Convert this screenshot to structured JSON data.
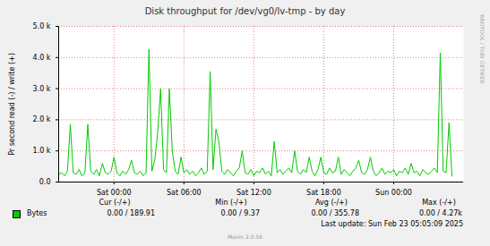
{
  "chart_data": {
    "type": "line",
    "title": "Disk throughput for /dev/vg0/lv-tmp - by day",
    "y_label": "Pr second read (-) / write (+)",
    "side_text": "RRDTOOL / TOBI OETIKER",
    "footer": "Last update: Sun Feb 23 05:05:09 2025",
    "credit": "Munin 2.0.56",
    "grid": true,
    "xlim": [
      -4.75,
      30
    ],
    "xticks": [
      {
        "value": 0,
        "label": "Sat 00:00"
      },
      {
        "value": 6,
        "label": "Sat 06:00"
      },
      {
        "value": 12,
        "label": "Sat 12:00"
      },
      {
        "value": 18,
        "label": "Sat 18:00"
      },
      {
        "value": 24,
        "label": "Sun 00:00"
      }
    ],
    "ylim": [
      0,
      5000
    ],
    "yticks": [
      {
        "value": 0,
        "label": "0.0"
      },
      {
        "value": 1000,
        "label": "1.0 k"
      },
      {
        "value": 2000,
        "label": "2.0 k"
      },
      {
        "value": 3000,
        "label": "3.0 k"
      },
      {
        "value": 4000,
        "label": "4.0 k"
      },
      {
        "value": 5000,
        "label": "5.0 k"
      }
    ],
    "x": [
      -4.75,
      -4.5,
      -4.25,
      -4,
      -3.75,
      -3.5,
      -3.25,
      -3,
      -2.75,
      -2.5,
      -2.25,
      -2,
      -1.75,
      -1.5,
      -1.25,
      -1,
      -0.75,
      -0.5,
      -0.25,
      0,
      0.25,
      0.5,
      0.75,
      1,
      1.25,
      1.5,
      1.75,
      2,
      2.25,
      2.5,
      2.75,
      3,
      3.25,
      3.5,
      3.75,
      4,
      4.25,
      4.5,
      4.75,
      5,
      5.25,
      5.5,
      5.75,
      6,
      6.25,
      6.5,
      6.75,
      7,
      7.25,
      7.5,
      7.75,
      8,
      8.25,
      8.5,
      8.75,
      9,
      9.25,
      9.5,
      9.75,
      10,
      10.25,
      10.5,
      10.75,
      11,
      11.25,
      11.5,
      11.75,
      12,
      12.25,
      12.5,
      12.75,
      13,
      13.25,
      13.5,
      13.75,
      14,
      14.25,
      14.5,
      14.75,
      15,
      15.25,
      15.5,
      15.75,
      16,
      16.25,
      16.5,
      16.75,
      17,
      17.25,
      17.5,
      17.75,
      18,
      18.25,
      18.5,
      18.75,
      19,
      19.25,
      19.5,
      19.75,
      20,
      20.25,
      20.5,
      20.75,
      21,
      21.25,
      21.5,
      21.75,
      22,
      22.25,
      22.5,
      22.75,
      23,
      23.25,
      23.5,
      23.75,
      24,
      24.25,
      24.5,
      24.75,
      25,
      25.25,
      25.5,
      25.75,
      26,
      26.25,
      26.5,
      26.75,
      27,
      27.25,
      27.5,
      27.75,
      28,
      28.25,
      28.5,
      28.75,
      29
    ],
    "series": [
      {
        "name": "Bytes",
        "color": "#00cc00",
        "values": [
          250,
          300,
          200,
          350,
          1850,
          300,
          250,
          400,
          200,
          300,
          1850,
          350,
          250,
          400,
          200,
          600,
          300,
          250,
          350,
          800,
          300,
          200,
          350,
          250,
          400,
          700,
          300,
          250,
          350,
          200,
          300,
          4270,
          350,
          700,
          1600,
          3000,
          400,
          300,
          3000,
          1000,
          350,
          250,
          800,
          300,
          400,
          250,
          350,
          200,
          300,
          450,
          250,
          350,
          3550,
          400,
          1700,
          1300,
          350,
          250,
          400,
          300,
          200,
          350,
          450,
          1000,
          300,
          250,
          400,
          200,
          350,
          300,
          450,
          250,
          350,
          200,
          1300,
          300,
          400,
          250,
          350,
          450,
          300,
          1000,
          350,
          250,
          400,
          300,
          800,
          350,
          200,
          400,
          800,
          300,
          250,
          450,
          300,
          350,
          800,
          250,
          400,
          300,
          200,
          350,
          450,
          700,
          300,
          250,
          400,
          800,
          350,
          200,
          300,
          450,
          250,
          350,
          300,
          400,
          200,
          350,
          300,
          450,
          250,
          600,
          300,
          350,
          200,
          400,
          300,
          250,
          350,
          450,
          300,
          4150,
          350,
          300,
          1900,
          190
        ]
      }
    ],
    "stats": {
      "headers": [
        "Cur (-/+)",
        "Min (-/+)",
        "Avg (-/+)",
        "Max (-/+)"
      ],
      "cells": [
        "0.00 / 189.91",
        "0.00 / 9.37",
        "0.00 / 355.78",
        "0.00 / 4.27k"
      ]
    }
  }
}
